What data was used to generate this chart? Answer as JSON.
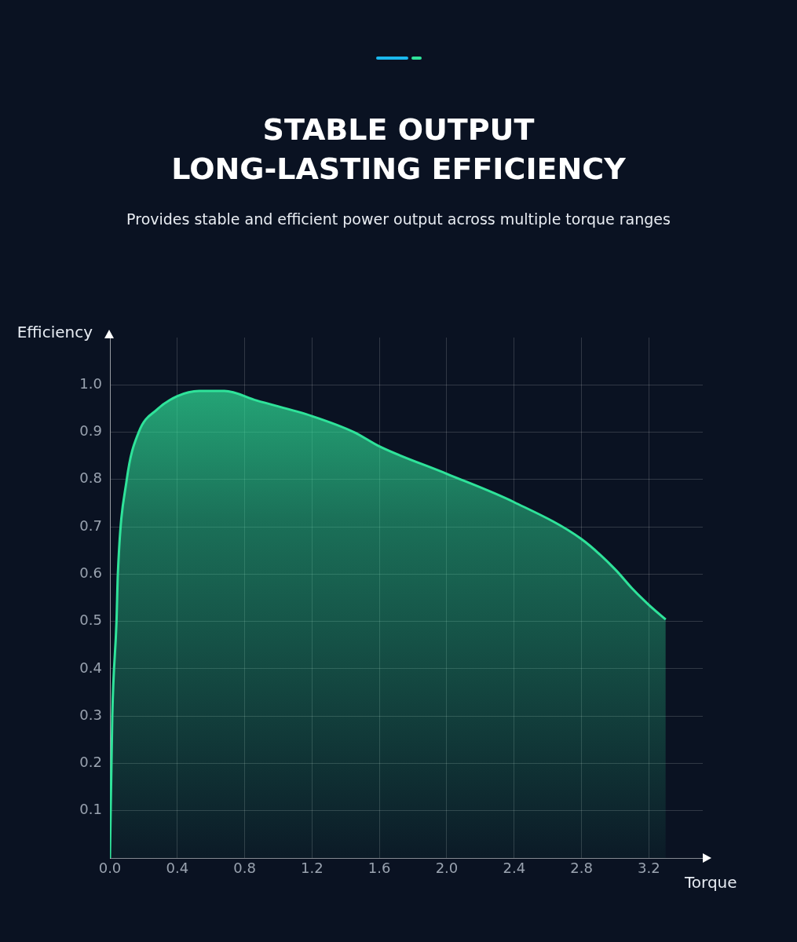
{
  "chart_data": {
    "type": "area",
    "title": "STABLE OUTPUT\nLONG-LASTING EFFICIENCY",
    "subtitle": "Provides stable and efficient power output across multiple torque ranges",
    "xlabel": "Torque",
    "ylabel": "Efficiency",
    "series": [
      {
        "color": "#2fe39a",
        "x": [
          0,
          0.014,
          0.039,
          0.047,
          0.1,
          0.171,
          0.28,
          0.4,
          0.53,
          0.68,
          0.87,
          1.2,
          1.45,
          1.6,
          2.0,
          2.4,
          2.8,
          3.0,
          3.1,
          3.2,
          3.3
        ],
        "values": [
          0,
          0.3,
          0.5,
          0.6,
          0.8,
          0.9,
          0.948,
          0.976,
          0.987,
          0.987,
          0.967,
          0.934,
          0.9,
          0.87,
          0.812,
          0.752,
          0.674,
          0.61,
          0.57,
          0.535,
          0.504
        ]
      }
    ],
    "xlim": [
      0,
      3.52
    ],
    "xticks": [
      {
        "value": 0,
        "label": "0.0"
      },
      0.4,
      0.8,
      1.2,
      1.6,
      {
        "value": 2,
        "label": "2.0"
      },
      2.4,
      2.8,
      3.2
    ],
    "ylim": [
      0,
      1.1
    ],
    "yticks": [
      0.1,
      0.2,
      0.3,
      0.4,
      0.5,
      0.6,
      0.7,
      0.8,
      0.9,
      {
        "value": 1,
        "label": "1.0"
      }
    ],
    "grid": true,
    "marker": "none",
    "legend": false
  }
}
